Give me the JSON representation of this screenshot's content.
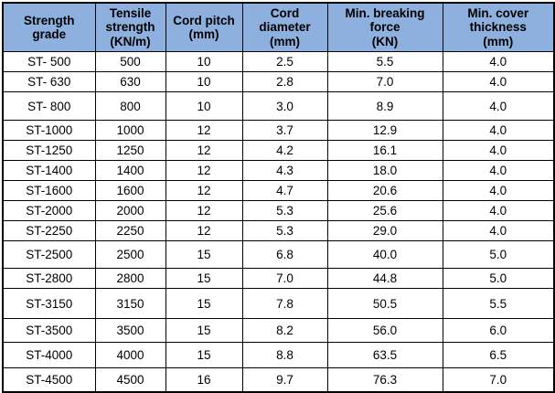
{
  "colors": {
    "header_bg": "#8db0de",
    "border": "#000000",
    "text": "#000000",
    "row_bg": "#ffffff"
  },
  "chart_data": {
    "type": "table",
    "columns": [
      "Strength\ngrade",
      "Tensile\nstrength\n(KN/m)",
      "Cord pitch\n(mm)",
      "Cord\ndiameter\n(mm)",
      "Min. breaking\nforce\n(KN)",
      "Min. cover\nthickness\n(mm)"
    ],
    "rows": [
      [
        "ST- 500",
        "500",
        "10",
        "2.5",
        "5.5",
        "4.0"
      ],
      [
        "ST- 630",
        "630",
        "10",
        "2.8",
        "7.0",
        "4.0"
      ],
      [
        "ST- 800",
        "800",
        "10",
        "3.0",
        "8.9",
        "4.0"
      ],
      [
        "ST-1000",
        "1000",
        "12",
        "3.7",
        "12.9",
        "4.0"
      ],
      [
        "ST-1250",
        "1250",
        "12",
        "4.2",
        "16.1",
        "4.0"
      ],
      [
        "ST-1400",
        "1400",
        "12",
        "4.3",
        "18.0",
        "4.0"
      ],
      [
        "ST-1600",
        "1600",
        "12",
        "4.7",
        "20.6",
        "4.0"
      ],
      [
        "ST-2000",
        "2000",
        "12",
        "5.3",
        "25.6",
        "4.0"
      ],
      [
        "ST-2250",
        "2250",
        "12",
        "5.3",
        "29.0",
        "4.0"
      ],
      [
        "ST-2500",
        "2500",
        "15",
        "6.8",
        "40.0",
        "5.0"
      ],
      [
        "ST-2800",
        "2800",
        "15",
        "7.0",
        "44.8",
        "5.0"
      ],
      [
        "ST-3150",
        "3150",
        "15",
        "7.8",
        "50.5",
        "5.5"
      ],
      [
        "ST-3500",
        "3500",
        "15",
        "8.2",
        "56.0",
        "6.0"
      ],
      [
        "ST-4000",
        "4000",
        "15",
        "8.8",
        "63.5",
        "6.5"
      ],
      [
        "ST-4500",
        "4500",
        "16",
        "9.7",
        "76.3",
        "7.0"
      ]
    ]
  }
}
